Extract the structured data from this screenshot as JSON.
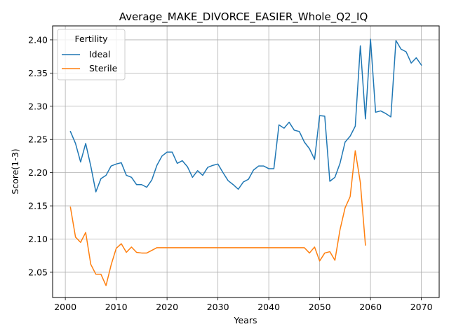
{
  "chart_data": {
    "type": "line",
    "title": "Average_MAKE_DIVORCE_EASIER_Whole_Q2_IQ",
    "xlabel": "Years",
    "ylabel": "Score(1-3)",
    "xlim": [
      1997.5,
      2073.5
    ],
    "ylim": [
      2.012,
      2.421
    ],
    "xticks": [
      2000,
      2010,
      2020,
      2030,
      2040,
      2050,
      2060,
      2070
    ],
    "yticks": [
      2.05,
      2.1,
      2.15,
      2.2,
      2.25,
      2.3,
      2.35,
      2.4
    ],
    "xtick_labels": [
      "2000",
      "2010",
      "2020",
      "2030",
      "2040",
      "2050",
      "2060",
      "2070"
    ],
    "ytick_labels": [
      "2.05",
      "2.10",
      "2.15",
      "2.20",
      "2.25",
      "2.30",
      "2.35",
      "2.40"
    ],
    "grid": true,
    "legend": {
      "title": "Fertility",
      "placement": "upper-left"
    },
    "series": [
      {
        "name": "Ideal",
        "color": "#1f77b4",
        "x": [
          2001,
          2002,
          2003,
          2004,
          2005,
          2006,
          2007,
          2008,
          2009,
          2010,
          2011,
          2012,
          2013,
          2014,
          2015,
          2016,
          2017,
          2018,
          2019,
          2020,
          2021,
          2022,
          2023,
          2024,
          2025,
          2026,
          2027,
          2028,
          2029,
          2030,
          2031,
          2032,
          2033,
          2034,
          2035,
          2036,
          2037,
          2038,
          2039,
          2040,
          2041,
          2042,
          2043,
          2044,
          2045,
          2046,
          2047,
          2048,
          2049,
          2050,
          2051,
          2052,
          2053,
          2054,
          2055,
          2056,
          2057,
          2058,
          2059,
          2060,
          2061,
          2062,
          2063,
          2064,
          2065,
          2066,
          2067,
          2068,
          2069,
          2070
        ],
        "values": [
          2.262,
          2.244,
          2.216,
          2.244,
          2.21,
          2.171,
          2.191,
          2.196,
          2.21,
          2.213,
          2.215,
          2.196,
          2.193,
          2.182,
          2.182,
          2.178,
          2.189,
          2.211,
          2.225,
          2.231,
          2.231,
          2.214,
          2.218,
          2.209,
          2.193,
          2.203,
          2.196,
          2.208,
          2.211,
          2.213,
          2.2,
          2.188,
          2.182,
          2.175,
          2.186,
          2.19,
          2.204,
          2.21,
          2.21,
          2.206,
          2.206,
          2.272,
          2.267,
          2.276,
          2.264,
          2.262,
          2.246,
          2.236,
          2.22,
          2.286,
          2.285,
          2.187,
          2.193,
          2.214,
          2.246,
          2.255,
          2.27,
          2.391,
          2.281,
          2.401,
          2.291,
          2.293,
          2.289,
          2.284,
          2.399,
          2.386,
          2.382,
          2.365,
          2.373,
          2.362
        ]
      },
      {
        "name": "Sterile",
        "color": "#ff7f0e",
        "x": [
          2001,
          2002,
          2003,
          2004,
          2005,
          2006,
          2007,
          2008,
          2009,
          2010,
          2011,
          2012,
          2013,
          2014,
          2015,
          2016,
          2017,
          2018,
          2019,
          2020,
          2021,
          2022,
          2023,
          2024,
          2025,
          2026,
          2027,
          2028,
          2029,
          2030,
          2031,
          2032,
          2033,
          2034,
          2035,
          2036,
          2037,
          2038,
          2039,
          2040,
          2041,
          2042,
          2043,
          2044,
          2045,
          2046,
          2047,
          2048,
          2049,
          2050,
          2051,
          2052,
          2053,
          2054,
          2055,
          2056,
          2057,
          2058,
          2059
        ],
        "values": [
          2.148,
          2.103,
          2.095,
          2.11,
          2.062,
          2.047,
          2.047,
          2.03,
          2.061,
          2.086,
          2.093,
          2.08,
          2.088,
          2.08,
          2.079,
          2.079,
          2.083,
          2.087,
          2.087,
          2.087,
          2.087,
          2.087,
          2.087,
          2.087,
          2.087,
          2.087,
          2.087,
          2.087,
          2.087,
          2.087,
          2.087,
          2.087,
          2.087,
          2.087,
          2.087,
          2.087,
          2.087,
          2.087,
          2.087,
          2.087,
          2.087,
          2.087,
          2.087,
          2.087,
          2.087,
          2.087,
          2.087,
          2.079,
          2.088,
          2.067,
          2.079,
          2.081,
          2.068,
          2.114,
          2.147,
          2.164,
          2.233,
          2.185,
          2.091
        ]
      }
    ]
  }
}
